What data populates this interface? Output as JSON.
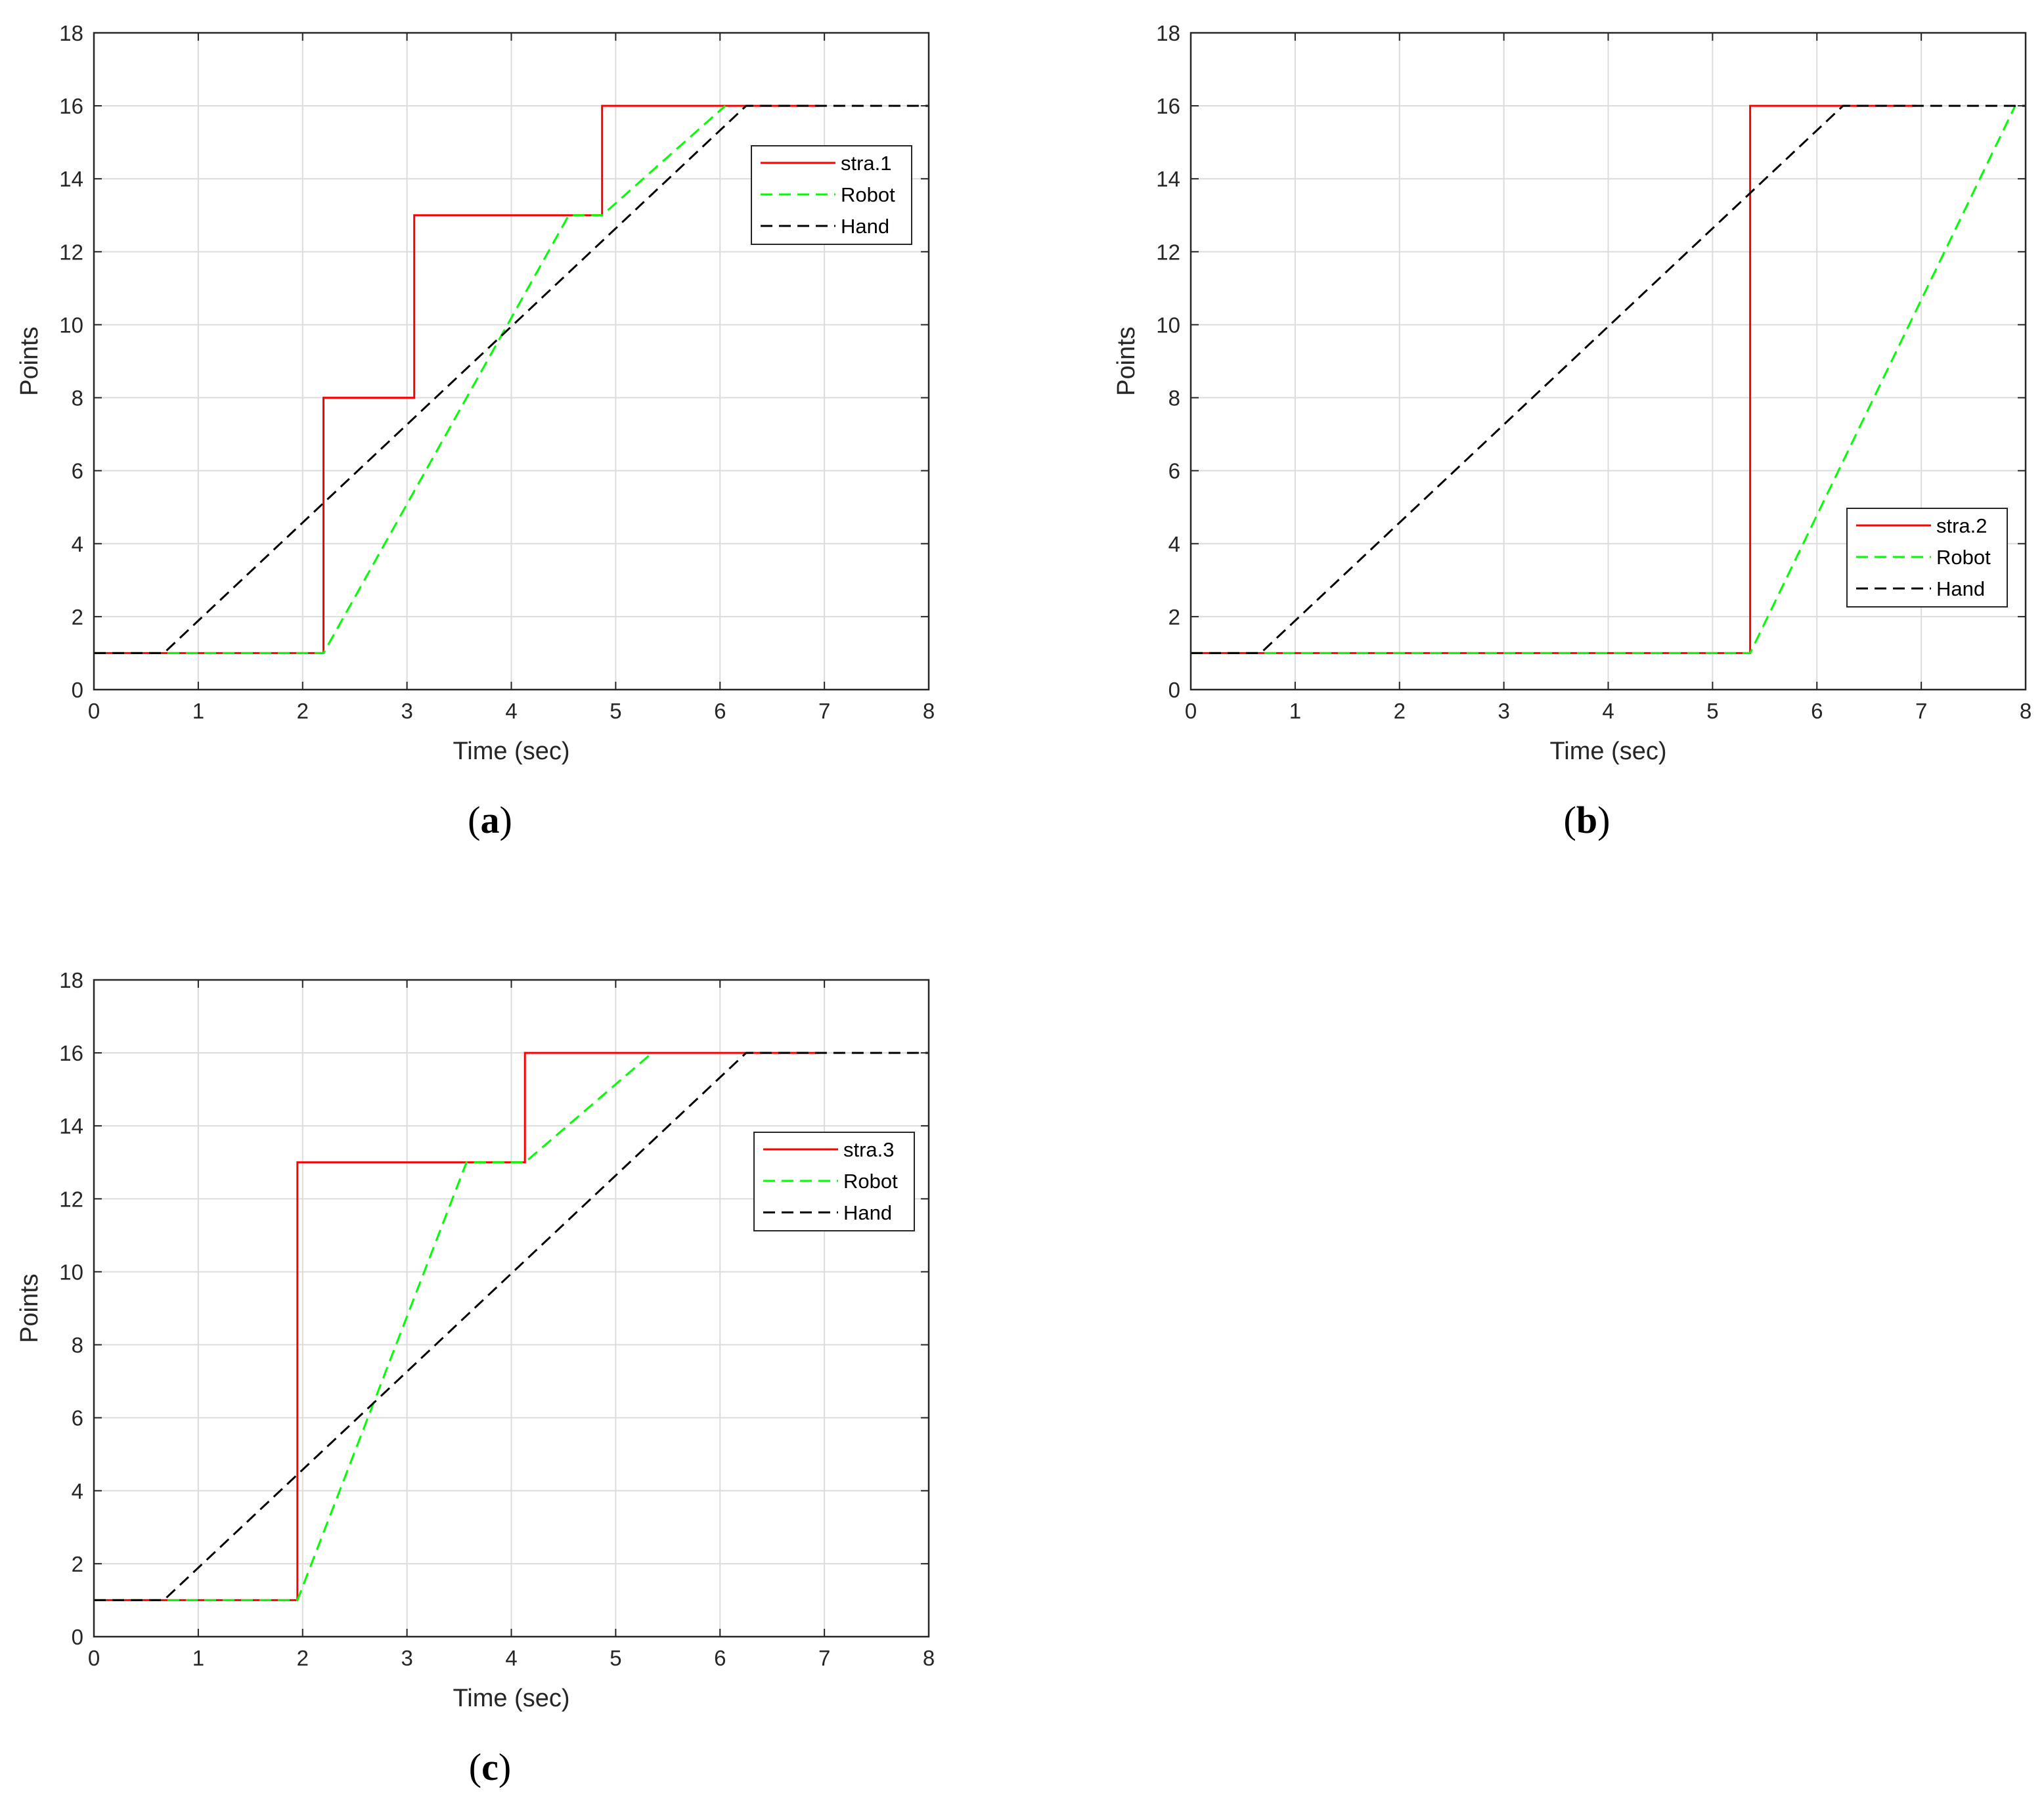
{
  "chart_data": [
    {
      "type": "line",
      "caption": "a",
      "xlabel": "Time (sec)",
      "ylabel": "Points",
      "xlim": [
        0,
        8
      ],
      "ylim": [
        0,
        18
      ],
      "xticks": [
        0,
        1,
        2,
        3,
        4,
        5,
        6,
        7,
        8
      ],
      "yticks": [
        0,
        2,
        4,
        6,
        8,
        10,
        12,
        14,
        16,
        18
      ],
      "grid": true,
      "legend_position": "top-right",
      "series": [
        {
          "name": "stra.1",
          "color": "#ff0000",
          "style": "solid",
          "x": [
            0,
            2.2,
            2.2,
            3.07,
            3.07,
            4.87,
            4.87,
            6.95
          ],
          "y": [
            1,
            1,
            8,
            8,
            13,
            13,
            16,
            16
          ]
        },
        {
          "name": "Robot",
          "color": "#00ff00",
          "style": "dashed",
          "x": [
            0,
            2.2,
            4.55,
            4.87,
            6.05
          ],
          "y": [
            1,
            1,
            13,
            13,
            16
          ]
        },
        {
          "name": "Hand",
          "color": "#000000",
          "style": "dashed",
          "x": [
            0,
            0.67,
            6.25,
            8
          ],
          "y": [
            1,
            1,
            16,
            16
          ]
        }
      ]
    },
    {
      "type": "line",
      "caption": "b",
      "xlabel": "Time (sec)",
      "ylabel": "Points",
      "xlim": [
        0,
        8
      ],
      "ylim": [
        0,
        18
      ],
      "xticks": [
        0,
        1,
        2,
        3,
        4,
        5,
        6,
        7,
        8
      ],
      "yticks": [
        0,
        2,
        4,
        6,
        8,
        10,
        12,
        14,
        16,
        18
      ],
      "grid": true,
      "legend_position": "bottom-right",
      "series": [
        {
          "name": "stra.2",
          "color": "#ff0000",
          "style": "solid",
          "x": [
            0,
            5.36,
            5.36,
            6.95
          ],
          "y": [
            1,
            1,
            16,
            16
          ]
        },
        {
          "name": "Robot",
          "color": "#00ff00",
          "style": "dashed",
          "x": [
            0,
            5.36,
            7.9
          ],
          "y": [
            1,
            1,
            16
          ]
        },
        {
          "name": "Hand",
          "color": "#000000",
          "style": "dashed",
          "x": [
            0,
            0.67,
            6.25,
            8
          ],
          "y": [
            1,
            1,
            16,
            16
          ]
        }
      ]
    },
    {
      "type": "line",
      "caption": "c",
      "xlabel": "Time (sec)",
      "ylabel": "Points",
      "xlim": [
        0,
        8
      ],
      "ylim": [
        0,
        18
      ],
      "xticks": [
        0,
        1,
        2,
        3,
        4,
        5,
        6,
        7,
        8
      ],
      "yticks": [
        0,
        2,
        4,
        6,
        8,
        10,
        12,
        14,
        16,
        18
      ],
      "grid": true,
      "legend_position": "right",
      "series": [
        {
          "name": "stra.3",
          "color": "#ff0000",
          "style": "solid",
          "x": [
            0,
            1.95,
            1.95,
            4.13,
            4.13,
            6.95
          ],
          "y": [
            1,
            1,
            13,
            13,
            16,
            16
          ]
        },
        {
          "name": "Robot",
          "color": "#00ff00",
          "style": "dashed",
          "x": [
            0,
            1.95,
            3.57,
            4.13,
            5.35
          ],
          "y": [
            1,
            1,
            13,
            13,
            16
          ]
        },
        {
          "name": "Hand",
          "color": "#000000",
          "style": "dashed",
          "x": [
            0,
            0.67,
            6.25,
            8
          ],
          "y": [
            1,
            1,
            16,
            16
          ]
        }
      ]
    }
  ]
}
